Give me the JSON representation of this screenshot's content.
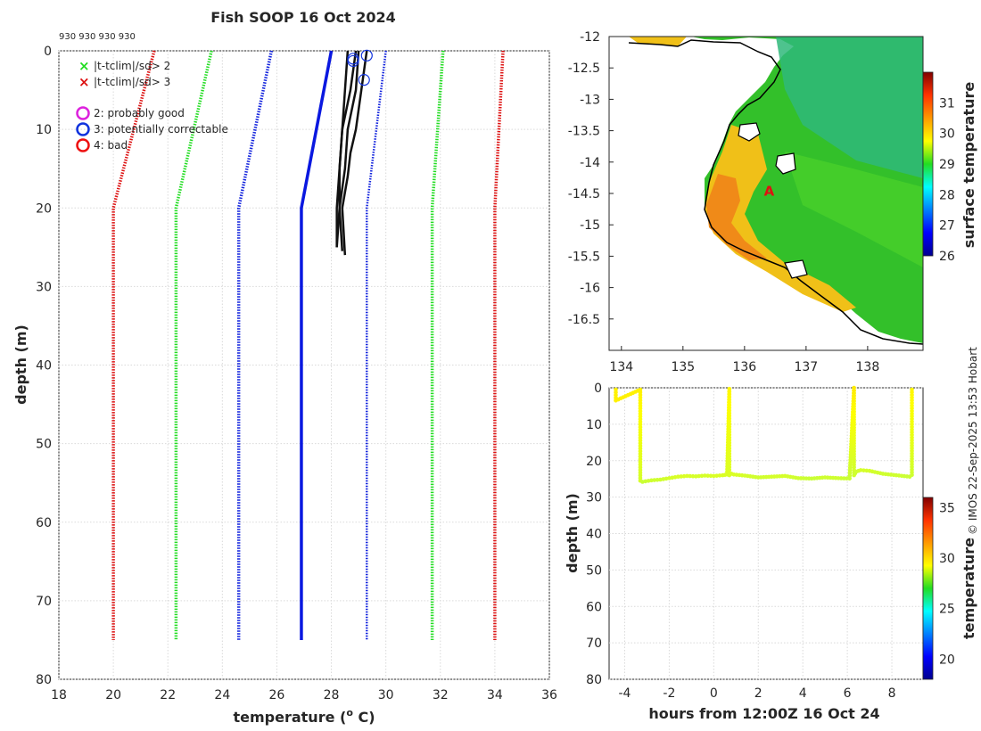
{
  "title": "Fish SOOP 16 Oct 2024",
  "profile_ids": "930 930 930 930",
  "stamp": "© IMOS 22-Sep-2025 13:53 Hobart",
  "chart_data": [
    {
      "type": "line",
      "name": "temperature-profile",
      "xlabel": "temperature (° C)",
      "xlabel_parts": {
        "a": "temperature (",
        "sup": "o",
        "b": " C)"
      },
      "ylabel": "depth (m)",
      "xlim": [
        18,
        36
      ],
      "ylim": [
        80,
        0
      ],
      "xticks": [
        18,
        20,
        22,
        24,
        26,
        28,
        30,
        32,
        34,
        36
      ],
      "yticks": [
        0,
        10,
        20,
        30,
        40,
        50,
        60,
        70,
        80
      ],
      "grid": true,
      "legend": {
        "placement": "top-left",
        "markers": [
          {
            "symbol": "x",
            "color": "#22dd22",
            "label": "|t-tclim|/sd> 2"
          },
          {
            "symbol": "x",
            "color": "#dd1111",
            "label": "|t-tclim|/sd> 3"
          },
          {
            "symbol": "o",
            "color": "#dd22dd",
            "label": "2: probably good"
          },
          {
            "symbol": "o",
            "color": "#1133dd",
            "label": "3: potentially correctable"
          },
          {
            "symbol": "o",
            "color": "#ee1111",
            "label": "4: bad"
          }
        ]
      },
      "climatology": {
        "depth": [
          0,
          20,
          75
        ],
        "mean": [
          28.0,
          26.9,
          26.9
        ],
        "sd2_lower": [
          23.6,
          22.3,
          22.3
        ],
        "sd2_upper": [
          32.1,
          31.7,
          31.7
        ],
        "sd3_lower": [
          21.5,
          20.0,
          20.0
        ],
        "sd3_upper": [
          34.3,
          34.0,
          34.0
        ],
        "sd1_lower": [
          25.8,
          24.6,
          24.6
        ],
        "sd1_upper": [
          30.0,
          29.3,
          29.3
        ]
      },
      "profiles": [
        {
          "depth": [
            0,
            5,
            10,
            15,
            20,
            25
          ],
          "temp": [
            28.6,
            28.5,
            28.4,
            28.3,
            28.2,
            28.2
          ]
        },
        {
          "depth": [
            0,
            5,
            10,
            15,
            20,
            25.5
          ],
          "temp": [
            28.9,
            28.7,
            28.4,
            28.3,
            28.3,
            28.4
          ]
        },
        {
          "depth": [
            0,
            5,
            10,
            15,
            20,
            25
          ],
          "temp": [
            29.0,
            28.9,
            28.6,
            28.5,
            28.3,
            28.2
          ]
        },
        {
          "depth": [
            0,
            5,
            10,
            13,
            16,
            20,
            26
          ],
          "temp": [
            29.3,
            29.1,
            28.9,
            28.7,
            28.6,
            28.4,
            28.5
          ]
        }
      ],
      "qc_flags": [
        {
          "temp": 28.8,
          "depth": 1.0,
          "flag": 3
        },
        {
          "temp": 29.3,
          "depth": 0.6,
          "flag": 3
        },
        {
          "temp": 29.2,
          "depth": 3.7,
          "flag": 3
        },
        {
          "temp": 28.8,
          "depth": 1.3,
          "flag": 3
        }
      ]
    },
    {
      "type": "heatmap",
      "name": "surface-temperature-map",
      "xlim": [
        133.8,
        138.9
      ],
      "ylim": [
        -17,
        -12
      ],
      "xticks": [
        134,
        135,
        136,
        137,
        138
      ],
      "yticks": [
        -12,
        -12.5,
        -13,
        -13.5,
        -14,
        -14.5,
        -15,
        -15.5,
        -16,
        -16.5
      ],
      "marker_label": "A",
      "marker": {
        "lon": 136.4,
        "lat": -14.45
      },
      "colorbar": {
        "label": "surface temperature",
        "min": 26,
        "max": 32,
        "ticks": [
          26,
          27,
          28,
          29,
          30,
          31
        ]
      }
    },
    {
      "type": "scatter",
      "name": "depth-vs-time",
      "xlabel": "hours from 12:00Z 16 Oct 24",
      "ylabel": "depth (m)",
      "xlim": [
        -4.7,
        9.4
      ],
      "ylim": [
        80,
        0
      ],
      "xticks": [
        -4,
        -2,
        0,
        2,
        4,
        6,
        8
      ],
      "yticks": [
        0,
        10,
        20,
        30,
        40,
        50,
        60,
        70,
        80
      ],
      "track": {
        "hours": [
          -4.4,
          -4.4,
          -3.3,
          -3.3,
          -3.2,
          -2.8,
          -2.4,
          -2.0,
          -1.6,
          -1.2,
          -0.8,
          -0.4,
          0.0,
          0.4,
          0.6,
          0.7,
          0.7,
          0.8,
          0.9,
          1.4,
          2.0,
          2.6,
          3.2,
          3.8,
          4.4,
          5.0,
          5.6,
          6.1,
          6.3,
          6.3,
          6.4,
          6.6,
          7.0,
          7.6,
          8.2,
          8.8,
          8.9,
          8.9
        ],
        "depth": [
          0.5,
          3.5,
          0.5,
          25.5,
          25.8,
          25.4,
          25.2,
          24.8,
          24.4,
          24.2,
          24.3,
          24.1,
          24.2,
          24.0,
          23.8,
          0.3,
          24.0,
          23.6,
          23.8,
          24.1,
          24.6,
          24.4,
          24.2,
          24.8,
          24.9,
          24.6,
          24.8,
          24.9,
          0.0,
          24.0,
          23.0,
          22.6,
          22.8,
          23.6,
          24.0,
          24.4,
          23.9,
          0.5
        ],
        "temp": [
          29.5,
          29.5,
          29.5,
          28.5,
          28.3,
          28.4,
          28.4,
          28.5,
          28.6,
          28.6,
          28.5,
          28.5,
          28.6,
          28.6,
          28.6,
          29.4,
          28.6,
          28.6,
          28.6,
          28.5,
          28.4,
          28.5,
          28.5,
          28.4,
          28.3,
          28.4,
          28.4,
          28.3,
          29.6,
          28.4,
          28.4,
          28.5,
          28.5,
          28.4,
          28.4,
          28.3,
          28.4,
          29.4
        ]
      },
      "colorbar": {
        "label": "temperature",
        "min": 18,
        "max": 36,
        "ticks": [
          20,
          25,
          30,
          35
        ]
      }
    }
  ]
}
